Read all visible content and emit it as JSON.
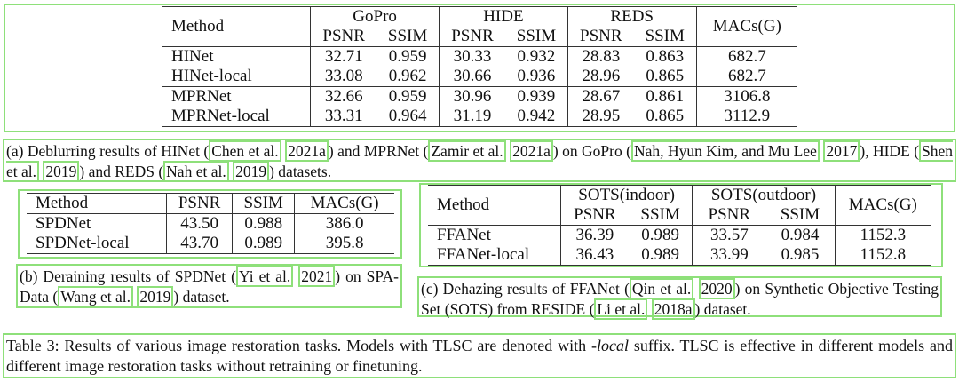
{
  "table_a": {
    "columns": {
      "method": "Method",
      "groups": [
        "GoPro",
        "HIDE",
        "REDS"
      ],
      "metrics": [
        "PSNR",
        "SSIM",
        "PSNR",
        "SSIM",
        "PSNR",
        "SSIM"
      ],
      "macs": "MACs(G)"
    },
    "row_groups": [
      [
        [
          "HINet",
          "32.71",
          "0.959",
          "30.33",
          "0.932",
          "28.83",
          "0.863",
          "682.7"
        ],
        [
          "HINet-local",
          "33.08",
          "0.962",
          "30.66",
          "0.936",
          "28.96",
          "0.865",
          "682.7"
        ]
      ],
      [
        [
          "MPRNet",
          "32.66",
          "0.959",
          "30.96",
          "0.939",
          "28.67",
          "0.861",
          "3106.8"
        ],
        [
          "MPRNet-local",
          "33.31",
          "0.964",
          "31.19",
          "0.942",
          "28.95",
          "0.865",
          "3112.9"
        ]
      ]
    ]
  },
  "caption_a": [
    "(a) Deblurring results of HINet (",
    [
      "Chen et al.",
      "2021a"
    ],
    ") and MPRNet (",
    [
      "Zamir et al.",
      "2021a"
    ],
    ") on GoPro (",
    [
      "Nah, Hyun Kim, and Mu Lee",
      "2017"
    ],
    "), HIDE (",
    [
      "Shen et al.",
      "2019"
    ],
    ") and REDS (",
    [
      "Nah et al.",
      "2019"
    ],
    ") datasets."
  ],
  "table_b": {
    "columns": [
      "Method",
      "PSNR",
      "SSIM",
      "MACs(G)"
    ],
    "rows": [
      [
        "SPDNet",
        "43.50",
        "0.988",
        "386.0"
      ],
      [
        "SPDNet-local",
        "43.70",
        "0.989",
        "395.8"
      ]
    ]
  },
  "caption_b": [
    "(b) Deraining results of SPDNet (",
    [
      "Yi et al.",
      "2021"
    ],
    ") on SPA-Data (",
    [
      "Wang et al.",
      "2019"
    ],
    ") dataset."
  ],
  "table_c": {
    "columns": {
      "method": "Method",
      "groups": [
        "SOTS(indoor)",
        "SOTS(outdoor)"
      ],
      "metrics": [
        "PSNR",
        "SSIM",
        "PSNR",
        "SSIM"
      ],
      "macs": "MACs(G)"
    },
    "row_groups": [
      [
        [
          "FFANet",
          "36.39",
          "0.989",
          "33.57",
          "0.984",
          "1152.3"
        ],
        [
          "FFANet-local",
          "36.43",
          "0.989",
          "33.99",
          "0.985",
          "1152.8"
        ]
      ]
    ]
  },
  "caption_c": [
    "(c) Dehazing results of FFANet (",
    [
      "Qin et al.",
      "2020"
    ],
    ") on Synthetic Objective Testing Set (SOTS) from RESIDE (",
    [
      "Li et al.",
      "2018a"
    ],
    ") dataset."
  ],
  "table_caption": {
    "before": "Table 3: Results of various image restoration tasks. Models with TLSC are denoted with ",
    "emphasis": "-local",
    "after": " suffix. TLSC is effective in different models and different image restoration tasks without retraining or finetuning."
  }
}
